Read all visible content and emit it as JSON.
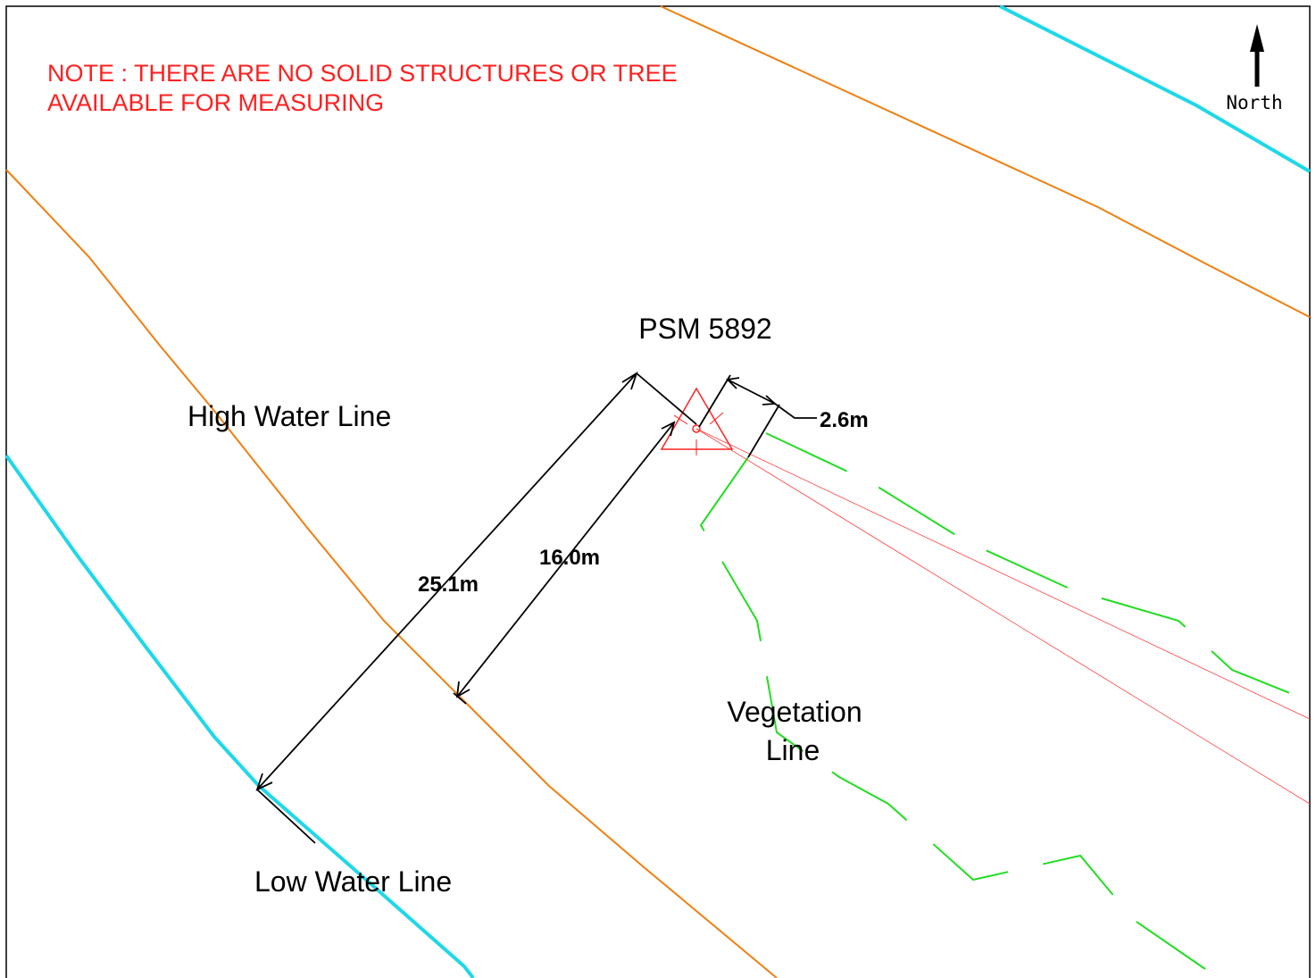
{
  "note": {
    "lines": [
      "NOTE : THERE ARE NO SOLID STRUCTURES  OR TREE",
      "AVAILABLE FOR MEASURING"
    ]
  },
  "north": "North",
  "mark": "PSM 5892",
  "labels": {
    "high_water": "High Water Line",
    "low_water": "Low Water Line",
    "vegetation": [
      "Vegetation",
      "Line"
    ]
  },
  "dimensions": [
    "25.1m",
    "16.0m",
    "2.6m"
  ]
}
